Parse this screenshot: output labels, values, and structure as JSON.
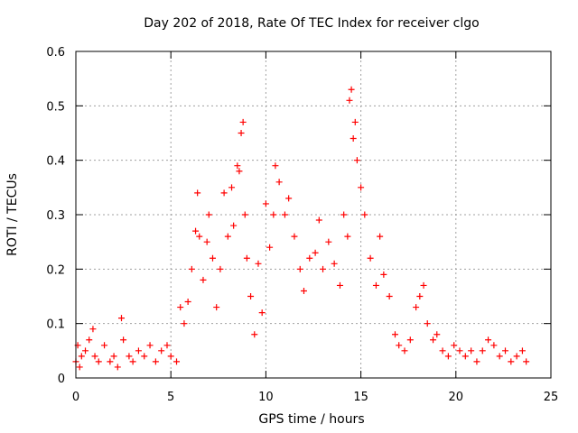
{
  "chart_data": {
    "type": "scatter",
    "title": "Day 202 of 2018, Rate Of TEC Index for receiver clgo",
    "xlabel": "GPS time / hours",
    "ylabel": "ROTI / TECUs",
    "xlim": [
      0,
      25
    ],
    "ylim": [
      0,
      0.6
    ],
    "xticks": [
      "0",
      "5",
      "10",
      "15",
      "20",
      "25"
    ],
    "yticks": [
      "0",
      "0.1",
      "0.2",
      "0.3",
      "0.4",
      "0.5",
      "0.6"
    ],
    "grid": true,
    "marker": "+",
    "color": "#ff0000",
    "series": [
      {
        "points": [
          [
            0.0,
            0.03
          ],
          [
            0.1,
            0.06
          ],
          [
            0.2,
            0.02
          ],
          [
            0.3,
            0.04
          ],
          [
            0.5,
            0.05
          ],
          [
            0.7,
            0.07
          ],
          [
            0.9,
            0.09
          ],
          [
            1.0,
            0.04
          ],
          [
            1.2,
            0.03
          ],
          [
            1.5,
            0.06
          ],
          [
            1.8,
            0.03
          ],
          [
            2.0,
            0.04
          ],
          [
            2.2,
            0.02
          ],
          [
            2.4,
            0.11
          ],
          [
            2.5,
            0.07
          ],
          [
            2.8,
            0.04
          ],
          [
            3.0,
            0.03
          ],
          [
            3.3,
            0.05
          ],
          [
            3.6,
            0.04
          ],
          [
            3.9,
            0.06
          ],
          [
            4.2,
            0.03
          ],
          [
            4.5,
            0.05
          ],
          [
            4.8,
            0.06
          ],
          [
            5.0,
            0.04
          ],
          [
            5.3,
            0.03
          ],
          [
            5.5,
            0.13
          ],
          [
            5.7,
            0.1
          ],
          [
            5.9,
            0.14
          ],
          [
            6.1,
            0.2
          ],
          [
            6.3,
            0.27
          ],
          [
            6.4,
            0.34
          ],
          [
            6.5,
            0.26
          ],
          [
            6.7,
            0.18
          ],
          [
            6.9,
            0.25
          ],
          [
            7.0,
            0.3
          ],
          [
            7.2,
            0.22
          ],
          [
            7.4,
            0.13
          ],
          [
            7.6,
            0.2
          ],
          [
            7.8,
            0.34
          ],
          [
            8.0,
            0.26
          ],
          [
            8.2,
            0.35
          ],
          [
            8.3,
            0.28
          ],
          [
            8.5,
            0.39
          ],
          [
            8.6,
            0.38
          ],
          [
            8.7,
            0.45
          ],
          [
            8.8,
            0.47
          ],
          [
            8.9,
            0.3
          ],
          [
            9.0,
            0.22
          ],
          [
            9.2,
            0.15
          ],
          [
            9.4,
            0.08
          ],
          [
            9.6,
            0.21
          ],
          [
            9.8,
            0.12
          ],
          [
            10.0,
            0.32
          ],
          [
            10.2,
            0.24
          ],
          [
            10.4,
            0.3
          ],
          [
            10.5,
            0.39
          ],
          [
            10.7,
            0.36
          ],
          [
            11.0,
            0.3
          ],
          [
            11.2,
            0.33
          ],
          [
            11.5,
            0.26
          ],
          [
            11.8,
            0.2
          ],
          [
            12.0,
            0.16
          ],
          [
            12.3,
            0.22
          ],
          [
            12.6,
            0.23
          ],
          [
            12.8,
            0.29
          ],
          [
            13.0,
            0.2
          ],
          [
            13.3,
            0.25
          ],
          [
            13.6,
            0.21
          ],
          [
            13.9,
            0.17
          ],
          [
            14.1,
            0.3
          ],
          [
            14.3,
            0.26
          ],
          [
            14.4,
            0.51
          ],
          [
            14.5,
            0.53
          ],
          [
            14.6,
            0.44
          ],
          [
            14.7,
            0.47
          ],
          [
            14.8,
            0.4
          ],
          [
            15.0,
            0.35
          ],
          [
            15.2,
            0.3
          ],
          [
            15.5,
            0.22
          ],
          [
            15.8,
            0.17
          ],
          [
            16.0,
            0.26
          ],
          [
            16.2,
            0.19
          ],
          [
            16.5,
            0.15
          ],
          [
            16.8,
            0.08
          ],
          [
            17.0,
            0.06
          ],
          [
            17.3,
            0.05
          ],
          [
            17.6,
            0.07
          ],
          [
            17.9,
            0.13
          ],
          [
            18.1,
            0.15
          ],
          [
            18.3,
            0.17
          ],
          [
            18.5,
            0.1
          ],
          [
            18.8,
            0.07
          ],
          [
            19.0,
            0.08
          ],
          [
            19.3,
            0.05
          ],
          [
            19.6,
            0.04
          ],
          [
            19.9,
            0.06
          ],
          [
            20.2,
            0.05
          ],
          [
            20.5,
            0.04
          ],
          [
            20.8,
            0.05
          ],
          [
            21.1,
            0.03
          ],
          [
            21.4,
            0.05
          ],
          [
            21.7,
            0.07
          ],
          [
            22.0,
            0.06
          ],
          [
            22.3,
            0.04
          ],
          [
            22.6,
            0.05
          ],
          [
            22.9,
            0.03
          ],
          [
            23.2,
            0.04
          ],
          [
            23.5,
            0.05
          ],
          [
            23.7,
            0.03
          ]
        ]
      }
    ]
  }
}
